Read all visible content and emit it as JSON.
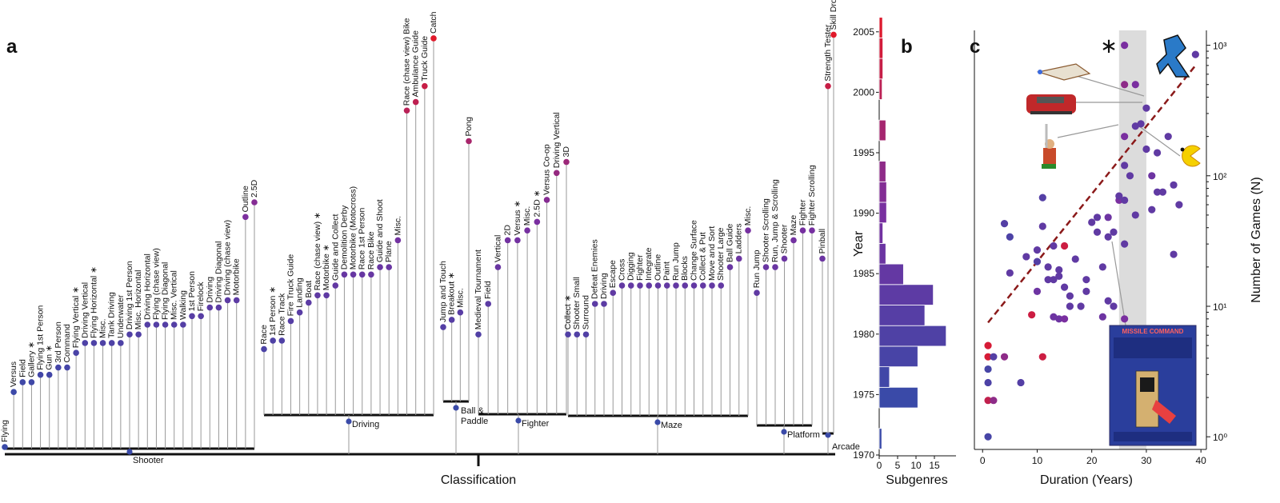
{
  "panels": {
    "a": "a",
    "b": "b",
    "c": "c"
  },
  "colors": {
    "low": "#3a4aa8",
    "mid": "#7a2fa0",
    "high": "#e0192a",
    "trend": "#8b1a1a",
    "band": "#dcdcdc"
  },
  "chart_data": [
    {
      "type": "dendrogram",
      "xlabel": "Classification",
      "root": "Arcade",
      "groups": [
        {
          "name": "Shooter",
          "leaves": [
            {
              "label": "Flying",
              "year": 1971
            },
            {
              "label": "Versus",
              "year": 1975.5
            },
            {
              "label": "Field",
              "year": 1976.3
            },
            {
              "label": "Gallery ∗",
              "year": 1976.3
            },
            {
              "label": "Flying 1st Person",
              "year": 1976.9
            },
            {
              "label": "Gun ∗",
              "year": 1976.9
            },
            {
              "label": "3rd Person",
              "year": 1977.5
            },
            {
              "label": "Command",
              "year": 1977.5
            },
            {
              "label": "Flying Vertical ∗",
              "year": 1978.7
            },
            {
              "label": "Driving Vertical",
              "year": 1979.5
            },
            {
              "label": "Flying Horizontal ∗",
              "year": 1979.5
            },
            {
              "label": "Misc.",
              "year": 1979.5
            },
            {
              "label": "Tank Driving",
              "year": 1979.5
            },
            {
              "label": "Underwater",
              "year": 1979.5
            },
            {
              "label": "Driving 1st Person",
              "year": 1980.2
            },
            {
              "label": "Misc. Horizontal",
              "year": 1980.2
            },
            {
              "label": "Driving Horizontal",
              "year": 1981
            },
            {
              "label": "Flying (chase view)",
              "year": 1981
            },
            {
              "label": "Flying Diagonal",
              "year": 1981
            },
            {
              "label": "Misc. Vertical",
              "year": 1981
            },
            {
              "label": "Walking",
              "year": 1981
            },
            {
              "label": "1st Person",
              "year": 1981.7
            },
            {
              "label": "Firelock",
              "year": 1981.7
            },
            {
              "label": "Driving",
              "year": 1982.4
            },
            {
              "label": "Driving Diagonal",
              "year": 1982.4
            },
            {
              "label": "Driving (chase view)",
              "year": 1983
            },
            {
              "label": "Motorbike",
              "year": 1983
            },
            {
              "label": "Outline",
              "year": 1989.8
            },
            {
              "label": "2.5D",
              "year": 1991
            }
          ]
        },
        {
          "name": "Driving",
          "leaves": [
            {
              "label": "Race",
              "year": 1979
            },
            {
              "label": "1st Person ∗",
              "year": 1979.7
            },
            {
              "label": "Race Track",
              "year": 1979.7
            },
            {
              "label": "Fire Truck Guide",
              "year": 1981.3
            },
            {
              "label": "Landing",
              "year": 1982
            },
            {
              "label": "Boat",
              "year": 1982.8
            },
            {
              "label": "Race (chase view) ∗",
              "year": 1983.4
            },
            {
              "label": "Motorbike ∗",
              "year": 1983.4
            },
            {
              "label": "Guide and Collect",
              "year": 1984.2
            },
            {
              "label": "Demolition Derby",
              "year": 1985.1
            },
            {
              "label": "Motorbike (Motocross)",
              "year": 1985.1
            },
            {
              "label": "Race 1st Person",
              "year": 1985.1
            },
            {
              "label": "Race Bike",
              "year": 1985.1
            },
            {
              "label": "Guide and Shoot",
              "year": 1985.7
            },
            {
              "label": "Plane",
              "year": 1985.7
            },
            {
              "label": "Misc.",
              "year": 1987.9
            },
            {
              "label": "Race (chase view) Bike",
              "year": 1998.5
            },
            {
              "label": "Ambulance Guide",
              "year": 1999.2
            },
            {
              "label": "Truck Guide",
              "year": 2000.5
            },
            {
              "label": "Catch",
              "year": 2004.4
            }
          ]
        },
        {
          "name": "Ball & Paddle",
          "leaves": [
            {
              "label": "Jump and Touch",
              "year": 1980.8
            },
            {
              "label": "Breakout ∗",
              "year": 1981.4
            },
            {
              "label": "Misc.",
              "year": 1982
            },
            {
              "label": "Pong",
              "year": 1996
            }
          ]
        },
        {
          "name": "Fighter",
          "leaves": [
            {
              "label": "Medieval Tournament",
              "year": 1980.2
            },
            {
              "label": "Field",
              "year": 1982.7
            },
            {
              "label": "Vertical",
              "year": 1985.7
            },
            {
              "label": "2D",
              "year": 1987.9
            },
            {
              "label": "Versus ∗",
              "year": 1987.9
            },
            {
              "label": "Misc.",
              "year": 1988.7
            },
            {
              "label": "2.5D ∗",
              "year": 1989.4
            },
            {
              "label": "Versus Co-op",
              "year": 1991.2
            },
            {
              "label": "Driving Vertical",
              "year": 1993.4
            },
            {
              "label": "3D",
              "year": 1994.3
            }
          ]
        },
        {
          "name": "Maze",
          "leaves": [
            {
              "label": "Collect ∗",
              "year": 1980.2
            },
            {
              "label": "Shooter Small",
              "year": 1980.2
            },
            {
              "label": "Surround",
              "year": 1980.2
            },
            {
              "label": "Defeat Enemies",
              "year": 1982.7
            },
            {
              "label": "Driving",
              "year": 1982.7
            },
            {
              "label": "Escape",
              "year": 1983.6
            },
            {
              "label": "Cross",
              "year": 1984.2
            },
            {
              "label": "Digging",
              "year": 1984.2
            },
            {
              "label": "Fighter",
              "year": 1984.2
            },
            {
              "label": "Integrate",
              "year": 1984.2
            },
            {
              "label": "Outline",
              "year": 1984.2
            },
            {
              "label": "Paint",
              "year": 1984.2
            },
            {
              "label": "Run Jump",
              "year": 1984.2
            },
            {
              "label": "Blocks",
              "year": 1984.2
            },
            {
              "label": "Change Surface",
              "year": 1984.2
            },
            {
              "label": "Collect & Put",
              "year": 1984.2
            },
            {
              "label": "Move and Sort",
              "year": 1984.2
            },
            {
              "label": "Shooter Large",
              "year": 1984.2
            },
            {
              "label": "Ball Guide",
              "year": 1985.7
            },
            {
              "label": "Ladders",
              "year": 1986.4
            },
            {
              "label": "Misc.",
              "year": 1988.7
            }
          ]
        },
        {
          "name": "Platform",
          "leaves": [
            {
              "label": "Run Jump",
              "year": 1983.6
            },
            {
              "label": "Shooter Scrolling",
              "year": 1985.7
            },
            {
              "label": "Run, Jump & Scrolling",
              "year": 1985.7
            },
            {
              "label": "Shooter",
              "year": 1986.4
            },
            {
              "label": "Maze",
              "year": 1987.9
            },
            {
              "label": "Fighter",
              "year": 1988.7
            },
            {
              "label": "Fighter Scrolling",
              "year": 1988.7
            }
          ]
        },
        {
          "name": "",
          "leaves": [
            {
              "label": "Pinball",
              "year": 1986.4
            },
            {
              "label": "Strength Tester",
              "year": 2000.5
            },
            {
              "label": "Skill Drop",
              "year": 2004.7
            }
          ]
        }
      ]
    },
    {
      "type": "bar",
      "orientation": "horizontal",
      "xlabel": "Subgenres",
      "ylabel": "Year",
      "xticks": [
        0,
        5,
        10,
        15
      ],
      "yticks": [
        1970,
        1975,
        1980,
        1985,
        1990,
        1995,
        2000,
        2005
      ],
      "xlim": [
        0,
        19
      ],
      "ylim": [
        1970,
        2005
      ],
      "bin": 1.7,
      "bins": [
        {
          "start": 1970.5,
          "value": 0.7
        },
        {
          "start": 1972.2,
          "value": 0
        },
        {
          "start": 1973.9,
          "value": 10.5
        },
        {
          "start": 1975.6,
          "value": 2.8
        },
        {
          "start": 1977.3,
          "value": 10.5
        },
        {
          "start": 1979,
          "value": 18.2
        },
        {
          "start": 1980.7,
          "value": 12.4
        },
        {
          "start": 1982.4,
          "value": 14.7
        },
        {
          "start": 1984.1,
          "value": 6.6
        },
        {
          "start": 1985.8,
          "value": 1.8
        },
        {
          "start": 1987.5,
          "value": 1
        },
        {
          "start": 1989.2,
          "value": 2
        },
        {
          "start": 1990.9,
          "value": 2
        },
        {
          "start": 1992.6,
          "value": 1.8
        },
        {
          "start": 1994.3,
          "value": 0
        },
        {
          "start": 1996,
          "value": 1.8
        },
        {
          "start": 1997.7,
          "value": 0
        },
        {
          "start": 1999.4,
          "value": 0.8
        },
        {
          "start": 2001.1,
          "value": 1
        },
        {
          "start": 2002.8,
          "value": 1
        },
        {
          "start": 2004.5,
          "value": 0.9
        }
      ]
    },
    {
      "type": "scatter",
      "xlabel": "Duration (Years)",
      "ylabel": "Number of Games (N)",
      "xticks": [
        0,
        10,
        20,
        30,
        40
      ],
      "yticks": [
        1,
        10,
        100,
        1000
      ],
      "ytick_labels": [
        "10⁰",
        "10¹",
        "10²",
        "10³"
      ],
      "xlim": [
        -1.5,
        41
      ],
      "ylim": [
        0.8,
        1300
      ],
      "yscale": "log",
      "highlight_band": [
        25,
        30
      ],
      "trend": {
        "x": [
          1,
          39
        ],
        "y": [
          7.5,
          700
        ]
      },
      "marker": "∗",
      "inset_title": "MISSILE COMMAND",
      "points": [
        {
          "x": 1,
          "y": 1,
          "c": 0.1
        },
        {
          "x": 1,
          "y": 2.6,
          "c": 0.15
        },
        {
          "x": 1,
          "y": 3.3,
          "c": 0.1
        },
        {
          "x": 1,
          "y": 1.9,
          "c": 0.85
        },
        {
          "x": 1,
          "y": 4.1,
          "c": 0.95
        },
        {
          "x": 1,
          "y": 5,
          "c": 0.95
        },
        {
          "x": 2,
          "y": 1.9,
          "c": 0.6
        },
        {
          "x": 2,
          "y": 4.1,
          "c": 0.2
        },
        {
          "x": 4,
          "y": 4.1,
          "c": 0.6
        },
        {
          "x": 4,
          "y": 43,
          "c": 0.2
        },
        {
          "x": 5,
          "y": 18,
          "c": 0.3
        },
        {
          "x": 5,
          "y": 34,
          "c": 0.15
        },
        {
          "x": 7,
          "y": 2.6,
          "c": 0.2
        },
        {
          "x": 8,
          "y": 24,
          "c": 0.3
        },
        {
          "x": 9,
          "y": 8.6,
          "c": 0.9
        },
        {
          "x": 10,
          "y": 13,
          "c": 0.4
        },
        {
          "x": 10,
          "y": 22,
          "c": 0.2
        },
        {
          "x": 10,
          "y": 27,
          "c": 0.3
        },
        {
          "x": 11,
          "y": 4.1,
          "c": 0.9
        },
        {
          "x": 11,
          "y": 41,
          "c": 0.3
        },
        {
          "x": 11,
          "y": 68,
          "c": 0.2
        },
        {
          "x": 12,
          "y": 16,
          "c": 0.3
        },
        {
          "x": 12,
          "y": 20,
          "c": 0.3
        },
        {
          "x": 13,
          "y": 8.3,
          "c": 0.4
        },
        {
          "x": 13,
          "y": 16,
          "c": 0.3
        },
        {
          "x": 13,
          "y": 29,
          "c": 0.3
        },
        {
          "x": 14,
          "y": 8,
          "c": 0.4
        },
        {
          "x": 14,
          "y": 17,
          "c": 0.3
        },
        {
          "x": 14,
          "y": 19,
          "c": 0.3
        },
        {
          "x": 15,
          "y": 8,
          "c": 0.5
        },
        {
          "x": 15,
          "y": 14,
          "c": 0.3
        },
        {
          "x": 15,
          "y": 29,
          "c": 0.9
        },
        {
          "x": 16,
          "y": 10,
          "c": 0.3
        },
        {
          "x": 16,
          "y": 12,
          "c": 0.3
        },
        {
          "x": 17,
          "y": 23,
          "c": 0.3
        },
        {
          "x": 18,
          "y": 10,
          "c": 0.3
        },
        {
          "x": 19,
          "y": 13,
          "c": 0.3
        },
        {
          "x": 19,
          "y": 16,
          "c": 0.3
        },
        {
          "x": 20,
          "y": 44,
          "c": 0.3
        },
        {
          "x": 21,
          "y": 37,
          "c": 0.3
        },
        {
          "x": 21,
          "y": 48,
          "c": 0.3
        },
        {
          "x": 22,
          "y": 8.3,
          "c": 0.4
        },
        {
          "x": 22,
          "y": 20,
          "c": 0.3
        },
        {
          "x": 23,
          "y": 11,
          "c": 0.3
        },
        {
          "x": 23,
          "y": 34,
          "c": 0.3
        },
        {
          "x": 23,
          "y": 48,
          "c": 0.4
        },
        {
          "x": 24,
          "y": 10,
          "c": 0.3
        },
        {
          "x": 24,
          "y": 37,
          "c": 0.3
        },
        {
          "x": 25,
          "y": 65,
          "c": 0.5
        },
        {
          "x": 25,
          "y": 70,
          "c": 0.3
        },
        {
          "x": 26,
          "y": 1000,
          "c": 0.5
        },
        {
          "x": 26,
          "y": 500,
          "c": 0.6
        },
        {
          "x": 26,
          "y": 200,
          "c": 0.5
        },
        {
          "x": 26,
          "y": 120,
          "c": 0.3
        },
        {
          "x": 26,
          "y": 65,
          "c": 0.3
        },
        {
          "x": 26,
          "y": 30,
          "c": 0.3
        },
        {
          "x": 26,
          "y": 8,
          "c": 0.5
        },
        {
          "x": 27,
          "y": 100,
          "c": 0.3
        },
        {
          "x": 28,
          "y": 50,
          "c": 0.3
        },
        {
          "x": 28,
          "y": 500,
          "c": 0.5
        },
        {
          "x": 28,
          "y": 240,
          "c": 0.3
        },
        {
          "x": 29,
          "y": 250,
          "c": 0.3
        },
        {
          "x": 30,
          "y": 330,
          "c": 0.3
        },
        {
          "x": 30,
          "y": 160,
          "c": 0.3
        },
        {
          "x": 31,
          "y": 100,
          "c": 0.4
        },
        {
          "x": 31,
          "y": 55,
          "c": 0.3
        },
        {
          "x": 32,
          "y": 150,
          "c": 0.3
        },
        {
          "x": 32,
          "y": 75,
          "c": 0.3
        },
        {
          "x": 33,
          "y": 75,
          "c": 0.3
        },
        {
          "x": 34,
          "y": 200,
          "c": 0.3
        },
        {
          "x": 35,
          "y": 85,
          "c": 0.3
        },
        {
          "x": 35,
          "y": 25,
          "c": 0.3
        },
        {
          "x": 36,
          "y": 60,
          "c": 0.3
        },
        {
          "x": 39,
          "y": 850,
          "c": 0.3
        }
      ]
    }
  ]
}
